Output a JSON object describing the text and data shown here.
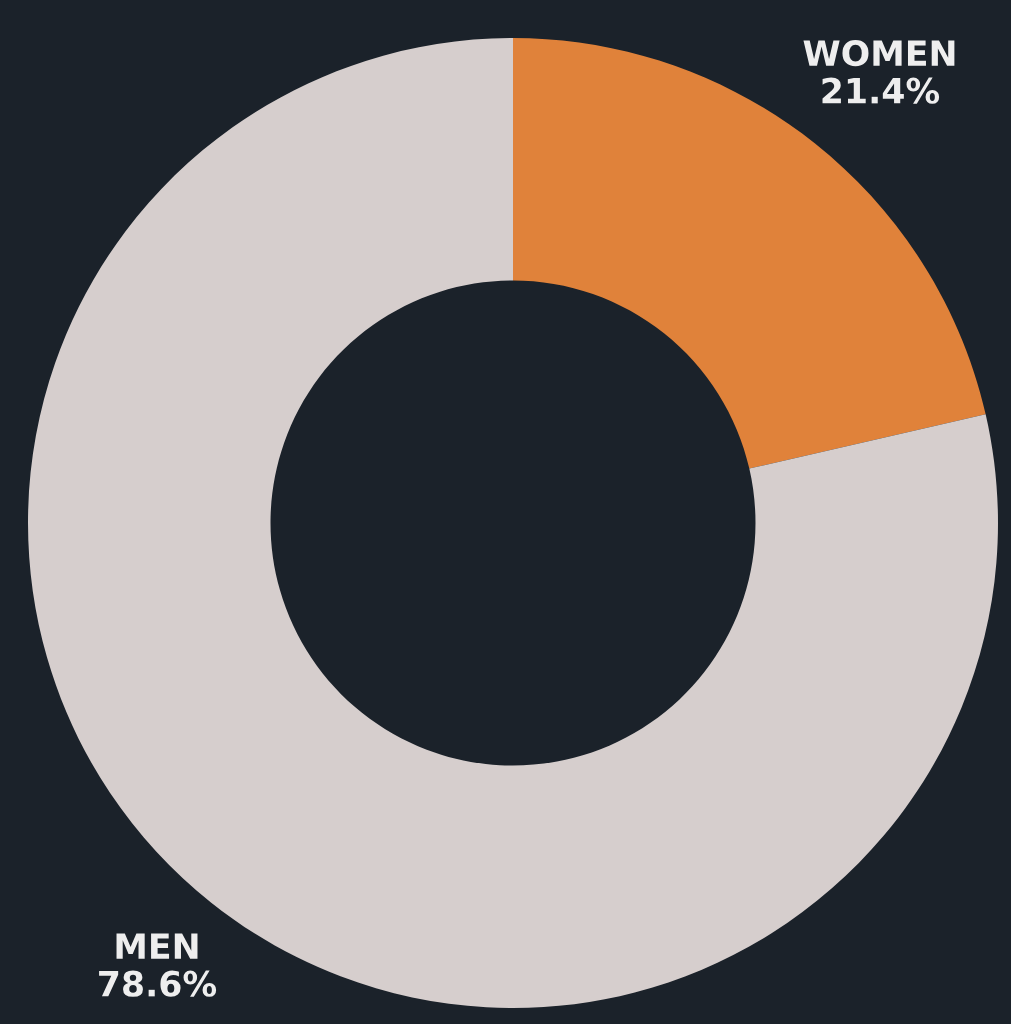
{
  "chart_data": {
    "type": "donut",
    "categories": [
      "WOMEN",
      "MEN"
    ],
    "values": [
      21.4,
      78.6
    ],
    "colors": [
      "#e0823a",
      "#d6cecd"
    ],
    "value_labels": [
      "21.4%",
      "78.6%"
    ],
    "legend": false
  }
}
